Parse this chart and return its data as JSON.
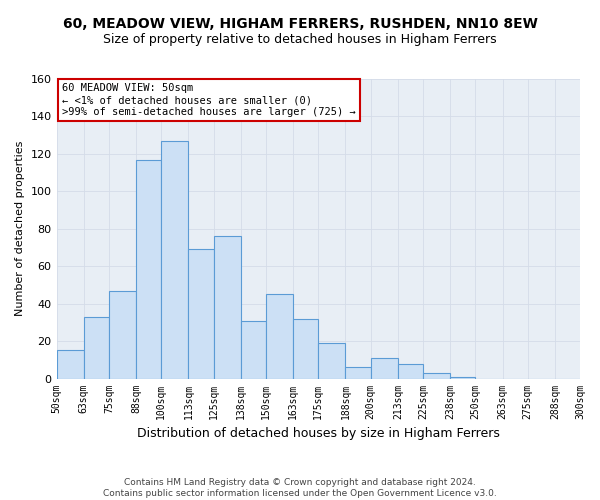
{
  "title": "60, MEADOW VIEW, HIGHAM FERRERS, RUSHDEN, NN10 8EW",
  "subtitle": "Size of property relative to detached houses in Higham Ferrers",
  "xlabel": "Distribution of detached houses by size in Higham Ferrers",
  "ylabel": "Number of detached properties",
  "footer1": "Contains HM Land Registry data © Crown copyright and database right 2024.",
  "footer2": "Contains public sector information licensed under the Open Government Licence v3.0.",
  "bin_labels": [
    "50sqm",
    "63sqm",
    "75sqm",
    "88sqm",
    "100sqm",
    "113sqm",
    "125sqm",
    "138sqm",
    "150sqm",
    "163sqm",
    "175sqm",
    "188sqm",
    "200sqm",
    "213sqm",
    "225sqm",
    "238sqm",
    "250sqm",
    "263sqm",
    "275sqm",
    "288sqm",
    "300sqm"
  ],
  "bin_edges": [
    50,
    63,
    75,
    88,
    100,
    113,
    125,
    138,
    150,
    163,
    175,
    188,
    200,
    213,
    225,
    238,
    250,
    263,
    275,
    288,
    300
  ],
  "heights": [
    15,
    33,
    47,
    117,
    127,
    69,
    76,
    31,
    45,
    32,
    19,
    6,
    11,
    8,
    3,
    1,
    0,
    0,
    0,
    0
  ],
  "bar_color": "#cce0f5",
  "bar_edge_color": "#5b9bd5",
  "annotation_line1": "60 MEADOW VIEW: 50sqm",
  "annotation_line2": "← <1% of detached houses are smaller (0)",
  "annotation_line3": ">99% of semi-detached houses are larger (725) →",
  "annotation_box_color": "#ffffff",
  "annotation_box_edge": "#cc0000",
  "ylim": [
    0,
    160
  ],
  "yticks": [
    0,
    20,
    40,
    60,
    80,
    100,
    120,
    140,
    160
  ],
  "grid_color": "#d4dce8",
  "bg_color": "#e8eef5",
  "title_fontsize": 10,
  "subtitle_fontsize": 9,
  "ylabel_fontsize": 8,
  "xlabel_fontsize": 9
}
